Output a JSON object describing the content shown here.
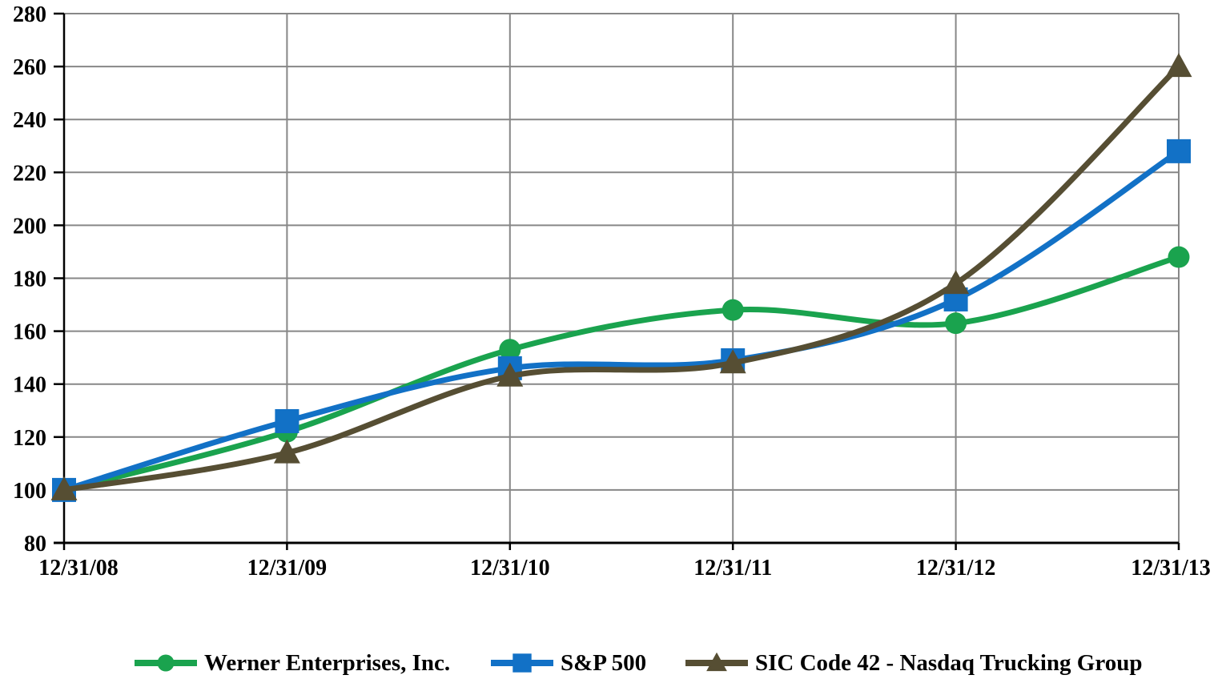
{
  "chart_data": {
    "type": "line",
    "title": "",
    "xlabel": "",
    "ylabel": "",
    "categories": [
      "12/31/08",
      "12/31/09",
      "12/31/10",
      "12/31/11",
      "12/31/12",
      "12/31/13"
    ],
    "series": [
      {
        "name": "Werner Enterprises, Inc.",
        "marker": "circle",
        "color": "#1AA34E",
        "values": [
          100,
          122,
          153,
          168,
          163,
          188
        ]
      },
      {
        "name": "S&P 500",
        "marker": "square",
        "color": "#1271C6",
        "values": [
          100,
          126,
          146,
          149,
          172,
          228
        ]
      },
      {
        "name": "SIC Code 42 - Nasdaq Trucking Group",
        "marker": "triangle",
        "color": "#564E33",
        "values": [
          100,
          114,
          143,
          148,
          178,
          260
        ]
      }
    ],
    "ylim": [
      80,
      280
    ],
    "ytick_step": 20,
    "grid": true,
    "smooth_lines": true,
    "legend_position": "bottom",
    "gridline_color": "#878787",
    "axis_color": "#000000",
    "text_color": "#000000",
    "background_color": "#ffffff"
  }
}
